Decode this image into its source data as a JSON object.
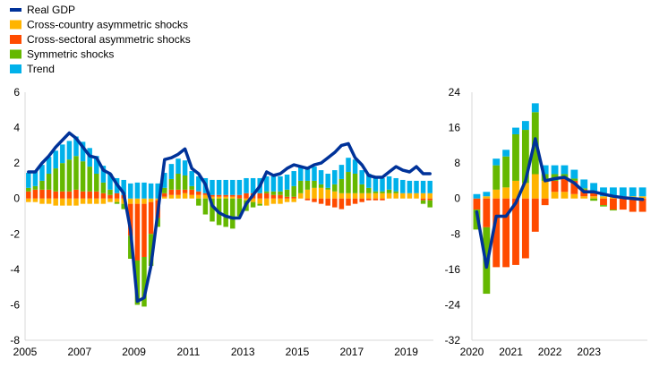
{
  "chart_data": {
    "type": "bar",
    "stacked": true,
    "legend": {
      "placement": "top-left",
      "items": [
        {
          "key": "gdp",
          "label": "Real GDP",
          "color": "#003299",
          "shape": "line"
        },
        {
          "key": "cc",
          "label": "Cross-country asymmetric shocks",
          "color": "#FFB400",
          "shape": "box"
        },
        {
          "key": "cs",
          "label": "Cross-sectoral asymmetric shocks",
          "color": "#FF4B00",
          "shape": "box"
        },
        {
          "key": "sym",
          "label": "Symmetric shocks",
          "color": "#65B800",
          "shape": "box"
        },
        {
          "key": "trend",
          "label": "Trend",
          "color": "#00B1EA",
          "shape": "box"
        }
      ]
    },
    "panels": [
      {
        "id": "left",
        "x_start": 2005,
        "quarters": 60,
        "xticks": [
          "2005",
          "2007",
          "2009",
          "2011",
          "2013",
          "2015",
          "2017",
          "2019"
        ],
        "ylim": [
          -8,
          6
        ],
        "yticks": [
          "6",
          "4",
          "2",
          "0",
          "-2",
          "-4",
          "-6",
          "-8"
        ],
        "trend": [
          0.85,
          0.85,
          0.9,
          0.95,
          1.0,
          1.05,
          1.05,
          1.1,
          1.1,
          1.05,
          1.0,
          0.95,
          0.9,
          0.85,
          0.85,
          0.85,
          0.9,
          0.9,
          0.85,
          0.85,
          0.85,
          0.85,
          0.85,
          0.85,
          0.85,
          0.85,
          0.85,
          0.85,
          0.85,
          0.85,
          0.85,
          0.85,
          0.85,
          0.85,
          0.85,
          0.85,
          0.85,
          0.85,
          0.85,
          0.85,
          0.8,
          0.8,
          0.8,
          0.8,
          0.8,
          0.8,
          0.8,
          0.8,
          0.8,
          0.8,
          0.8,
          0.8,
          0.75,
          0.75,
          0.75,
          0.75,
          0.7,
          0.7,
          0.7,
          0.7
        ],
        "sym": [
          0.2,
          0.2,
          0.5,
          0.9,
          1.3,
          1.6,
          1.8,
          1.9,
          1.7,
          1.4,
          1.0,
          0.6,
          0.3,
          -0.1,
          -0.3,
          -1.3,
          -2.5,
          -2.8,
          -1.8,
          -0.5,
          0.3,
          0.6,
          0.9,
          0.8,
          0.2,
          -0.4,
          -0.9,
          -1.3,
          -1.5,
          -1.6,
          -1.7,
          -1.0,
          -0.6,
          -0.3,
          -0.1,
          0.1,
          0.2,
          0.2,
          0.4,
          0.6,
          0.7,
          0.5,
          0.4,
          0.2,
          0.1,
          0.4,
          0.8,
          1.2,
          1.1,
          0.5,
          0.3,
          0.1,
          0.1,
          0.2,
          0.1,
          0.0,
          0.0,
          0.0,
          -0.2,
          -0.4
        ],
        "cs": [
          0.4,
          0.5,
          0.5,
          0.5,
          0.4,
          0.4,
          0.4,
          0.5,
          0.4,
          0.4,
          0.4,
          0.3,
          0.2,
          0.3,
          0.2,
          -1.8,
          -3.2,
          -3.0,
          -1.8,
          -1.0,
          0.2,
          0.3,
          0.3,
          0.2,
          0.3,
          0.2,
          0.1,
          0.1,
          0.1,
          0.1,
          0.1,
          0.2,
          0.3,
          0.3,
          0.3,
          0.3,
          0.2,
          0.2,
          0.1,
          0.1,
          0.0,
          -0.1,
          -0.2,
          -0.3,
          -0.4,
          -0.5,
          -0.6,
          -0.4,
          -0.3,
          -0.2,
          -0.1,
          -0.1,
          -0.1,
          0.0,
          0.0,
          0.0,
          0.0,
          0.0,
          -0.1,
          -0.1
        ],
        "cc": [
          -0.2,
          -0.2,
          -0.3,
          -0.3,
          -0.4,
          -0.4,
          -0.4,
          -0.4,
          -0.3,
          -0.3,
          -0.3,
          -0.3,
          -0.2,
          -0.2,
          -0.3,
          -0.3,
          -0.3,
          -0.3,
          -0.2,
          -0.1,
          0.1,
          0.2,
          0.2,
          0.3,
          0.2,
          0.2,
          0.2,
          0.1,
          0.1,
          0.1,
          0.1,
          0.0,
          -0.1,
          -0.2,
          -0.3,
          -0.4,
          -0.3,
          -0.3,
          -0.2,
          -0.2,
          0.3,
          0.5,
          0.6,
          0.6,
          0.5,
          0.4,
          0.3,
          0.3,
          0.3,
          0.3,
          0.3,
          0.3,
          0.3,
          0.3,
          0.3,
          0.3,
          0.3,
          0.3,
          0.3,
          0.3
        ],
        "gdp": [
          1.5,
          1.5,
          2.0,
          2.4,
          2.9,
          3.3,
          3.7,
          3.4,
          2.9,
          2.4,
          2.3,
          1.6,
          1.4,
          0.8,
          0.3,
          -1.8,
          -5.8,
          -5.6,
          -3.8,
          -0.8,
          2.2,
          2.3,
          2.5,
          2.8,
          1.7,
          1.4,
          0.8,
          -0.4,
          -0.8,
          -1.0,
          -1.1,
          -1.1,
          -0.3,
          0.2,
          0.7,
          1.5,
          1.3,
          1.4,
          1.7,
          1.9,
          1.8,
          1.7,
          1.9,
          2.0,
          2.3,
          2.6,
          3.0,
          3.1,
          2.3,
          1.9,
          1.3,
          1.2,
          1.2,
          1.5,
          1.8,
          1.6,
          1.5,
          1.8,
          1.4,
          1.4
        ]
      },
      {
        "id": "right",
        "x_start": 2020,
        "quarters": 18,
        "xticks": [
          "2020",
          "2021",
          "2022",
          "2023"
        ],
        "ylim": [
          -32,
          24
        ],
        "yticks": [
          "24",
          "16",
          "8",
          "0",
          "-8",
          "-16",
          "-24",
          "-32"
        ],
        "trend": [
          1.0,
          1.0,
          1.5,
          1.5,
          1.5,
          2.0,
          2.0,
          2.0,
          2.0,
          2.0,
          2.0,
          2.0,
          2.0,
          2.0,
          2.0,
          2.0,
          2.0,
          2.0
        ],
        "sym": [
          -4.5,
          -15.0,
          5.5,
          7.0,
          10.5,
          12.0,
          14.0,
          1.5,
          1.5,
          1.0,
          0.5,
          0.3,
          -0.5,
          -0.3,
          -0.2,
          0.0,
          0.0,
          0.0
        ],
        "cs": [
          -2.5,
          -6.5,
          -15.5,
          -15.5,
          -15.0,
          -13.5,
          -7.5,
          -1.5,
          2.5,
          3.0,
          3.0,
          1.5,
          1.0,
          -1.5,
          -2.5,
          -2.5,
          -3.0,
          -3.0
        ],
        "cc": [
          0.0,
          0.5,
          2.0,
          2.5,
          4.0,
          3.5,
          5.5,
          4.0,
          1.5,
          1.5,
          1.0,
          0.5,
          0.5,
          0.5,
          0.5,
          0.5,
          0.5,
          0.5
        ],
        "gdp": [
          -3.0,
          -15.5,
          -4.0,
          -4.0,
          -1.0,
          4.0,
          13.5,
          4.0,
          4.5,
          4.8,
          3.5,
          1.5,
          1.5,
          1.0,
          0.5,
          0.2,
          0.0,
          -0.2
        ]
      }
    ]
  }
}
